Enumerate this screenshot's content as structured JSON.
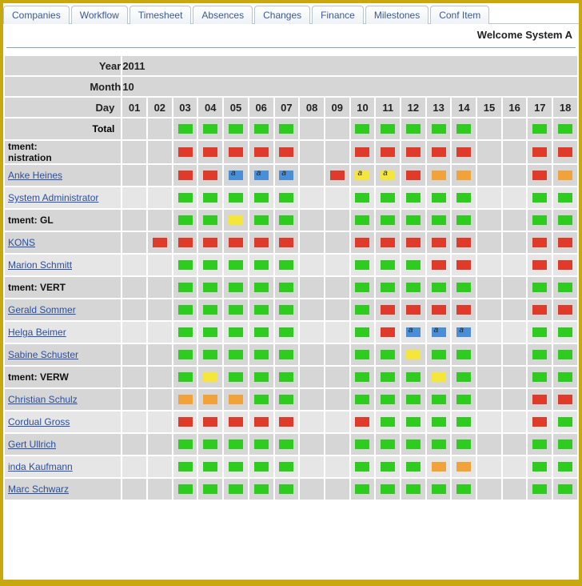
{
  "tabs": [
    "Companies",
    "Workflow",
    "Timesheet",
    "Absences",
    "Changes",
    "Finance",
    "Milestones",
    "Conf Item"
  ],
  "welcome": "Welcome System A",
  "year_label": "Year",
  "year_value": "2011",
  "month_label": "Month",
  "month_value": "10",
  "day_label": "Day",
  "total_label": "Total",
  "days": [
    "01",
    "02",
    "03",
    "04",
    "05",
    "06",
    "07",
    "08",
    "09",
    "10",
    "11",
    "12",
    "13",
    "14",
    "15",
    "16",
    "17",
    "18"
  ],
  "colors": {
    "green": "#2ecc1f",
    "red": "#e03a2a",
    "yellow": "#f5e63a",
    "orange": "#f1a33a",
    "blue": "#4a8ed8",
    "gray": "#d6d6d6",
    "empty": ""
  },
  "rows": [
    {
      "type": "total",
      "name": "Total",
      "cells": [
        "",
        "",
        "green",
        "green",
        "green",
        "green",
        "green",
        "",
        "",
        "green",
        "green",
        "green",
        "green",
        "green",
        "",
        "",
        "green",
        "green"
      ]
    },
    {
      "type": "dept",
      "name": "tment:\nnistration",
      "cells": [
        "",
        "",
        "red",
        "red",
        "red",
        "red",
        "red",
        "",
        "",
        "red",
        "red",
        "red",
        "red",
        "red",
        "",
        "",
        "red",
        "red"
      ]
    },
    {
      "type": "user",
      "name": "Anke Heines",
      "link": true,
      "cells": [
        "",
        "",
        "red",
        "red",
        "blue_a",
        "blue_a",
        "blue_a",
        "",
        "red",
        "yellow_a",
        "yellow_a",
        "red",
        "orange",
        "orange",
        "",
        "",
        "red",
        "orange"
      ]
    },
    {
      "type": "user",
      "name": "System Administrator",
      "link": true,
      "alt": true,
      "cells": [
        "",
        "",
        "green",
        "green",
        "green",
        "green",
        "green",
        "",
        "",
        "green",
        "green",
        "green",
        "green",
        "green",
        "",
        "",
        "green",
        "green"
      ]
    },
    {
      "type": "dept",
      "name": "tment: GL",
      "cells": [
        "",
        "",
        "green",
        "green",
        "yellow",
        "green",
        "green",
        "",
        "",
        "green",
        "green",
        "green",
        "green",
        "green",
        "",
        "",
        "green",
        "green"
      ]
    },
    {
      "type": "user",
      "name": "KONS",
      "link": true,
      "cells": [
        "",
        "red",
        "red",
        "red",
        "red",
        "red",
        "red",
        "",
        "",
        "red",
        "red",
        "red",
        "red",
        "red",
        "",
        "",
        "red",
        "red"
      ]
    },
    {
      "type": "user",
      "name": "Marion Schmitt",
      "link": true,
      "alt": true,
      "cells": [
        "",
        "",
        "green",
        "green",
        "green",
        "green",
        "green",
        "",
        "",
        "green",
        "green",
        "green",
        "red",
        "red",
        "",
        "",
        "red",
        "red"
      ]
    },
    {
      "type": "dept",
      "name": "tment: VERT",
      "cells": [
        "",
        "",
        "green",
        "green",
        "green",
        "green",
        "green",
        "",
        "",
        "green",
        "green",
        "green",
        "green",
        "green",
        "",
        "",
        "green",
        "green"
      ]
    },
    {
      "type": "user",
      "name": "Gerald Sommer",
      "link": true,
      "cells": [
        "",
        "",
        "green",
        "green",
        "green",
        "green",
        "green",
        "",
        "",
        "green",
        "red",
        "red",
        "red",
        "red",
        "",
        "",
        "red",
        "red"
      ]
    },
    {
      "type": "user",
      "name": "Helga Beimer",
      "link": true,
      "alt": true,
      "cells": [
        "",
        "",
        "green",
        "green",
        "green",
        "green",
        "green",
        "",
        "",
        "green",
        "red",
        "blue_a",
        "blue_a",
        "blue_a",
        "",
        "",
        "green",
        "green"
      ]
    },
    {
      "type": "user",
      "name": "Sabine Schuster",
      "link": true,
      "cells": [
        "",
        "",
        "green",
        "green",
        "green",
        "green",
        "green",
        "",
        "",
        "green",
        "green",
        "yellow",
        "green",
        "green",
        "",
        "",
        "green",
        "green"
      ]
    },
    {
      "type": "dept",
      "name": "tment: VERW",
      "cells": [
        "",
        "",
        "green",
        "yellow",
        "green",
        "green",
        "green",
        "",
        "",
        "green",
        "green",
        "green",
        "yellow",
        "green",
        "",
        "",
        "green",
        "green"
      ]
    },
    {
      "type": "user",
      "name": "Christian Schulz",
      "link": true,
      "cells": [
        "",
        "",
        "orange",
        "orange",
        "orange",
        "green",
        "green",
        "",
        "",
        "green",
        "green",
        "green",
        "green",
        "green",
        "",
        "",
        "red",
        "red"
      ]
    },
    {
      "type": "user",
      "name": "Cordual Gross",
      "link": true,
      "alt": true,
      "cells": [
        "",
        "",
        "red",
        "red",
        "red",
        "red",
        "red",
        "",
        "",
        "red",
        "green",
        "green",
        "green",
        "green",
        "",
        "",
        "red",
        "green"
      ]
    },
    {
      "type": "user",
      "name": "Gert Ullrich",
      "link": true,
      "cells": [
        "",
        "",
        "green",
        "green",
        "green",
        "green",
        "green",
        "",
        "",
        "green",
        "green",
        "green",
        "green",
        "green",
        "",
        "",
        "green",
        "green"
      ]
    },
    {
      "type": "user",
      "name": "inda Kaufmann",
      "link": true,
      "alt": true,
      "cells": [
        "",
        "",
        "green",
        "green",
        "green",
        "green",
        "green",
        "",
        "",
        "green",
        "green",
        "green",
        "orange",
        "orange",
        "",
        "",
        "green",
        "green"
      ]
    },
    {
      "type": "user",
      "name": "Marc Schwarz",
      "link": true,
      "cells": [
        "",
        "",
        "green",
        "green",
        "green",
        "green",
        "green",
        "",
        "",
        "green",
        "green",
        "green",
        "green",
        "green",
        "",
        "",
        "green",
        "green"
      ]
    }
  ]
}
